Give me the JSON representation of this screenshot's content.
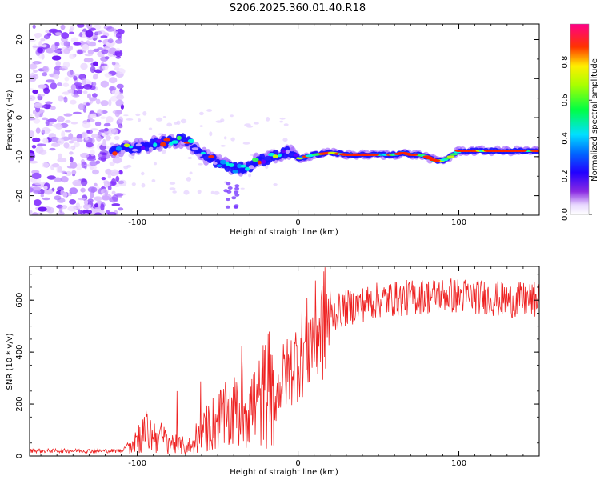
{
  "title": "S206.2025.360.01.40.R18",
  "chart_data": [
    {
      "type": "heatmap",
      "xlabel": "Height of straight line (km)",
      "ylabel": "Frequency (Hz)",
      "xlim": [
        -167,
        150
      ],
      "ylim": [
        -25,
        24
      ],
      "x_ticks": [
        "-100",
        "0",
        "100"
      ],
      "y_ticks": [
        "20",
        "10",
        "0",
        "-10",
        "-20"
      ],
      "colorbar": {
        "label": "Normalized spectral amplitude",
        "range": [
          0,
          1
        ],
        "ticks": [
          "0.0",
          "0.2",
          "0.4",
          "0.6",
          "0.8"
        ]
      },
      "ridge_frequency": {
        "x": [
          -115,
          -100,
          -85,
          -70,
          -60,
          -50,
          -40,
          -30,
          -25,
          -20,
          -15,
          -10,
          -5,
          0,
          10,
          20,
          30,
          40,
          50,
          60,
          65,
          70,
          75,
          80,
          85,
          90,
          95,
          100,
          110,
          120,
          130,
          140,
          150
        ],
        "freq": [
          -8.5,
          -7.5,
          -6.5,
          -5.5,
          -9.5,
          -11.5,
          -13,
          -12.5,
          -10.5,
          -11,
          -10,
          -9,
          -9,
          -10.5,
          -9.5,
          -9,
          -9.5,
          -9.5,
          -9.5,
          -9.5,
          -9,
          -9.5,
          -9.5,
          -10,
          -11,
          -11,
          -10,
          -8.5,
          -8.5,
          -8.5,
          -8.5,
          -8.5,
          -8.5
        ]
      },
      "noise_region_x": [
        -167,
        -113
      ]
    },
    {
      "type": "line",
      "xlabel": "Height of straight line (km)",
      "ylabel": "SNR (10 * v/v)",
      "xlim": [
        -167,
        150
      ],
      "ylim": [
        0,
        730
      ],
      "x_ticks": [
        "-100",
        "0",
        "100"
      ],
      "y_ticks": [
        "0",
        "200",
        "400",
        "600"
      ],
      "line_color": "#ee2222",
      "trend": {
        "x": [
          -167,
          -110,
          -103,
          -95,
          -85,
          -75,
          -65,
          -55,
          -45,
          -35,
          -25,
          -20,
          -15,
          -10,
          -5,
          0,
          10,
          20,
          30,
          50,
          70,
          90,
          110,
          130,
          150
        ],
        "snr": [
          20,
          20,
          60,
          90,
          70,
          40,
          40,
          120,
          150,
          180,
          200,
          250,
          200,
          300,
          330,
          380,
          460,
          540,
          570,
          600,
          610,
          620,
          615,
          600,
          600
        ]
      }
    }
  ]
}
